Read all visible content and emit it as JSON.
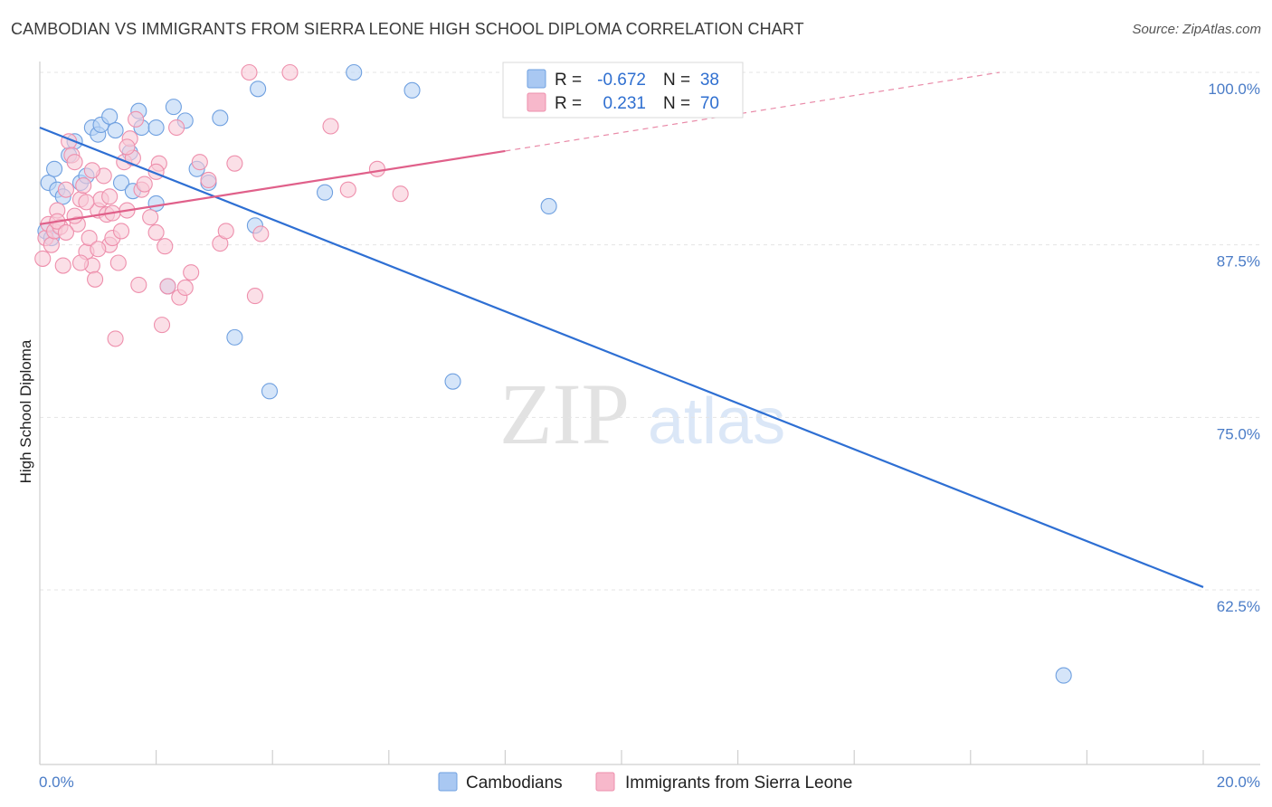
{
  "header": {
    "title": "CAMBODIAN VS IMMIGRANTS FROM SIERRA LEONE HIGH SCHOOL DIPLOMA CORRELATION CHART",
    "source": "Source: ZipAtlas.com"
  },
  "watermark": {
    "zip": "ZIP",
    "atlas": "atlas"
  },
  "legend": {
    "r_label": "R =",
    "n_label": "N =",
    "rows": [
      {
        "name": "Cambodians",
        "r": "-0.672",
        "n": "38",
        "color": "#a9c8f2"
      },
      {
        "name": "Immigrants from Sierra Leone",
        "r": "0.231",
        "n": "70",
        "color": "#f7b8cb"
      }
    ]
  },
  "chart_data": {
    "type": "scatter",
    "title": "CAMBODIAN VS IMMIGRANTS FROM SIERRA LEONE HIGH SCHOOL DIPLOMA CORRELATION CHART",
    "xlabel": "",
    "ylabel": "High School Diploma",
    "xlim": [
      0.0,
      20.0
    ],
    "ylim": [
      52.0,
      101.0
    ],
    "x_tick_labels": [
      "0.0%",
      "20.0%"
    ],
    "y_ticks": [
      100.0,
      87.5,
      75.0,
      62.5
    ],
    "y_tick_labels": [
      "100.0%",
      "87.5%",
      "75.0%",
      "62.5%"
    ],
    "grid": true,
    "series": [
      {
        "name": "Cambodians",
        "color": "#6fa0e0",
        "fill": "#b9d3f5",
        "trend": {
          "x": [
            0.0,
            20.0
          ],
          "y": [
            96.0,
            62.7
          ],
          "color": "#2e6fd3"
        },
        "points": [
          [
            0.15,
            92.0
          ],
          [
            0.25,
            93.0
          ],
          [
            0.3,
            91.5
          ],
          [
            0.4,
            91.0
          ],
          [
            0.5,
            94.0
          ],
          [
            0.6,
            95.0
          ],
          [
            0.7,
            92.0
          ],
          [
            0.8,
            92.5
          ],
          [
            0.9,
            96.0
          ],
          [
            1.0,
            95.5
          ],
          [
            1.05,
            96.2
          ],
          [
            1.2,
            96.8
          ],
          [
            1.3,
            95.8
          ],
          [
            1.4,
            92.0
          ],
          [
            1.55,
            94.2
          ],
          [
            1.6,
            91.4
          ],
          [
            1.7,
            97.2
          ],
          [
            1.75,
            96.0
          ],
          [
            2.0,
            90.5
          ],
          [
            2.0,
            96.0
          ],
          [
            2.2,
            84.5
          ],
          [
            2.3,
            97.5
          ],
          [
            2.5,
            96.5
          ],
          [
            2.7,
            93.0
          ],
          [
            2.9,
            92.0
          ],
          [
            3.1,
            96.7
          ],
          [
            3.35,
            80.8
          ],
          [
            3.7,
            88.9
          ],
          [
            3.75,
            98.8
          ],
          [
            3.95,
            76.9
          ],
          [
            4.9,
            91.3
          ],
          [
            5.4,
            100.0
          ],
          [
            6.4,
            98.7
          ],
          [
            7.1,
            77.6
          ],
          [
            8.75,
            90.3
          ],
          [
            17.6,
            56.3
          ],
          [
            0.1,
            88.5
          ],
          [
            0.2,
            88.0
          ]
        ]
      },
      {
        "name": "Immigrants from Sierra Leone",
        "color": "#ee8fac",
        "fill": "#f9c9d7",
        "trend": {
          "x": [
            0.0,
            8.0
          ],
          "y": [
            89.0,
            94.3
          ],
          "color": "#e0608a"
        },
        "trend_ext": {
          "x": [
            8.0,
            16.5
          ],
          "y": [
            94.3,
            100.0
          ],
          "color": "#e98aa8"
        },
        "points": [
          [
            0.05,
            86.5
          ],
          [
            0.1,
            88.0
          ],
          [
            0.15,
            89.0
          ],
          [
            0.2,
            87.5
          ],
          [
            0.25,
            88.5
          ],
          [
            0.3,
            90.0
          ],
          [
            0.35,
            88.8
          ],
          [
            0.4,
            86.0
          ],
          [
            0.45,
            91.5
          ],
          [
            0.5,
            95.0
          ],
          [
            0.55,
            94.0
          ],
          [
            0.6,
            93.5
          ],
          [
            0.65,
            89.0
          ],
          [
            0.7,
            90.8
          ],
          [
            0.75,
            91.8
          ],
          [
            0.8,
            87.0
          ],
          [
            0.85,
            88.0
          ],
          [
            0.9,
            86.0
          ],
          [
            0.95,
            85.0
          ],
          [
            1.0,
            90.0
          ],
          [
            1.05,
            90.8
          ],
          [
            1.1,
            92.5
          ],
          [
            1.15,
            89.7
          ],
          [
            1.2,
            87.5
          ],
          [
            1.25,
            88.0
          ],
          [
            1.3,
            80.7
          ],
          [
            1.35,
            86.2
          ],
          [
            1.4,
            88.5
          ],
          [
            1.45,
            93.5
          ],
          [
            1.5,
            90.0
          ],
          [
            1.55,
            95.2
          ],
          [
            1.6,
            93.8
          ],
          [
            1.65,
            96.6
          ],
          [
            1.7,
            84.6
          ],
          [
            1.75,
            91.5
          ],
          [
            1.8,
            91.9
          ],
          [
            1.9,
            89.5
          ],
          [
            2.0,
            88.4
          ],
          [
            2.05,
            93.4
          ],
          [
            2.1,
            81.7
          ],
          [
            2.15,
            87.4
          ],
          [
            2.2,
            84.5
          ],
          [
            2.35,
            96.0
          ],
          [
            2.4,
            83.7
          ],
          [
            2.5,
            84.4
          ],
          [
            2.6,
            85.5
          ],
          [
            2.75,
            93.5
          ],
          [
            2.9,
            92.2
          ],
          [
            3.1,
            87.6
          ],
          [
            3.2,
            88.5
          ],
          [
            3.35,
            93.4
          ],
          [
            3.6,
            100.0
          ],
          [
            3.7,
            83.8
          ],
          [
            3.8,
            88.3
          ],
          [
            4.3,
            100.0
          ],
          [
            5.0,
            96.1
          ],
          [
            5.3,
            91.5
          ],
          [
            5.8,
            93.0
          ],
          [
            6.2,
            91.2
          ],
          [
            1.0,
            87.2
          ],
          [
            0.6,
            89.6
          ],
          [
            0.7,
            86.2
          ],
          [
            1.25,
            89.8
          ],
          [
            0.3,
            89.2
          ],
          [
            0.45,
            88.4
          ],
          [
            1.2,
            91.0
          ],
          [
            0.8,
            90.6
          ],
          [
            1.5,
            94.6
          ],
          [
            2.0,
            92.8
          ],
          [
            0.9,
            92.9
          ]
        ]
      }
    ]
  }
}
